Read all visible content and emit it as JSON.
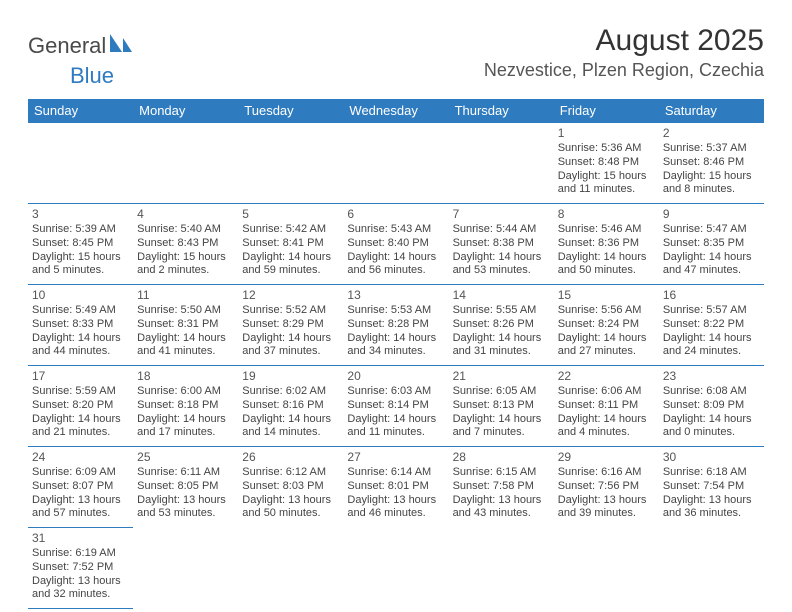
{
  "logo": {
    "text1": "General",
    "text2": "Blue"
  },
  "title": "August 2025",
  "location": "Nezvestice, Plzen Region, Czechia",
  "colors": {
    "header_bg": "#2f7bbf",
    "header_text": "#ffffff",
    "border": "#2f7bbf",
    "text": "#444444",
    "title_text": "#333333"
  },
  "weekdays": [
    "Sunday",
    "Monday",
    "Tuesday",
    "Wednesday",
    "Thursday",
    "Friday",
    "Saturday"
  ],
  "weeks": [
    [
      null,
      null,
      null,
      null,
      null,
      {
        "n": "1",
        "sr": "Sunrise: 5:36 AM",
        "ss": "Sunset: 8:48 PM",
        "d1": "Daylight: 15 hours",
        "d2": "and 11 minutes."
      },
      {
        "n": "2",
        "sr": "Sunrise: 5:37 AM",
        "ss": "Sunset: 8:46 PM",
        "d1": "Daylight: 15 hours",
        "d2": "and 8 minutes."
      }
    ],
    [
      {
        "n": "3",
        "sr": "Sunrise: 5:39 AM",
        "ss": "Sunset: 8:45 PM",
        "d1": "Daylight: 15 hours",
        "d2": "and 5 minutes."
      },
      {
        "n": "4",
        "sr": "Sunrise: 5:40 AM",
        "ss": "Sunset: 8:43 PM",
        "d1": "Daylight: 15 hours",
        "d2": "and 2 minutes."
      },
      {
        "n": "5",
        "sr": "Sunrise: 5:42 AM",
        "ss": "Sunset: 8:41 PM",
        "d1": "Daylight: 14 hours",
        "d2": "and 59 minutes."
      },
      {
        "n": "6",
        "sr": "Sunrise: 5:43 AM",
        "ss": "Sunset: 8:40 PM",
        "d1": "Daylight: 14 hours",
        "d2": "and 56 minutes."
      },
      {
        "n": "7",
        "sr": "Sunrise: 5:44 AM",
        "ss": "Sunset: 8:38 PM",
        "d1": "Daylight: 14 hours",
        "d2": "and 53 minutes."
      },
      {
        "n": "8",
        "sr": "Sunrise: 5:46 AM",
        "ss": "Sunset: 8:36 PM",
        "d1": "Daylight: 14 hours",
        "d2": "and 50 minutes."
      },
      {
        "n": "9",
        "sr": "Sunrise: 5:47 AM",
        "ss": "Sunset: 8:35 PM",
        "d1": "Daylight: 14 hours",
        "d2": "and 47 minutes."
      }
    ],
    [
      {
        "n": "10",
        "sr": "Sunrise: 5:49 AM",
        "ss": "Sunset: 8:33 PM",
        "d1": "Daylight: 14 hours",
        "d2": "and 44 minutes."
      },
      {
        "n": "11",
        "sr": "Sunrise: 5:50 AM",
        "ss": "Sunset: 8:31 PM",
        "d1": "Daylight: 14 hours",
        "d2": "and 41 minutes."
      },
      {
        "n": "12",
        "sr": "Sunrise: 5:52 AM",
        "ss": "Sunset: 8:29 PM",
        "d1": "Daylight: 14 hours",
        "d2": "and 37 minutes."
      },
      {
        "n": "13",
        "sr": "Sunrise: 5:53 AM",
        "ss": "Sunset: 8:28 PM",
        "d1": "Daylight: 14 hours",
        "d2": "and 34 minutes."
      },
      {
        "n": "14",
        "sr": "Sunrise: 5:55 AM",
        "ss": "Sunset: 8:26 PM",
        "d1": "Daylight: 14 hours",
        "d2": "and 31 minutes."
      },
      {
        "n": "15",
        "sr": "Sunrise: 5:56 AM",
        "ss": "Sunset: 8:24 PM",
        "d1": "Daylight: 14 hours",
        "d2": "and 27 minutes."
      },
      {
        "n": "16",
        "sr": "Sunrise: 5:57 AM",
        "ss": "Sunset: 8:22 PM",
        "d1": "Daylight: 14 hours",
        "d2": "and 24 minutes."
      }
    ],
    [
      {
        "n": "17",
        "sr": "Sunrise: 5:59 AM",
        "ss": "Sunset: 8:20 PM",
        "d1": "Daylight: 14 hours",
        "d2": "and 21 minutes."
      },
      {
        "n": "18",
        "sr": "Sunrise: 6:00 AM",
        "ss": "Sunset: 8:18 PM",
        "d1": "Daylight: 14 hours",
        "d2": "and 17 minutes."
      },
      {
        "n": "19",
        "sr": "Sunrise: 6:02 AM",
        "ss": "Sunset: 8:16 PM",
        "d1": "Daylight: 14 hours",
        "d2": "and 14 minutes."
      },
      {
        "n": "20",
        "sr": "Sunrise: 6:03 AM",
        "ss": "Sunset: 8:14 PM",
        "d1": "Daylight: 14 hours",
        "d2": "and 11 minutes."
      },
      {
        "n": "21",
        "sr": "Sunrise: 6:05 AM",
        "ss": "Sunset: 8:13 PM",
        "d1": "Daylight: 14 hours",
        "d2": "and 7 minutes."
      },
      {
        "n": "22",
        "sr": "Sunrise: 6:06 AM",
        "ss": "Sunset: 8:11 PM",
        "d1": "Daylight: 14 hours",
        "d2": "and 4 minutes."
      },
      {
        "n": "23",
        "sr": "Sunrise: 6:08 AM",
        "ss": "Sunset: 8:09 PM",
        "d1": "Daylight: 14 hours",
        "d2": "and 0 minutes."
      }
    ],
    [
      {
        "n": "24",
        "sr": "Sunrise: 6:09 AM",
        "ss": "Sunset: 8:07 PM",
        "d1": "Daylight: 13 hours",
        "d2": "and 57 minutes."
      },
      {
        "n": "25",
        "sr": "Sunrise: 6:11 AM",
        "ss": "Sunset: 8:05 PM",
        "d1": "Daylight: 13 hours",
        "d2": "and 53 minutes."
      },
      {
        "n": "26",
        "sr": "Sunrise: 6:12 AM",
        "ss": "Sunset: 8:03 PM",
        "d1": "Daylight: 13 hours",
        "d2": "and 50 minutes."
      },
      {
        "n": "27",
        "sr": "Sunrise: 6:14 AM",
        "ss": "Sunset: 8:01 PM",
        "d1": "Daylight: 13 hours",
        "d2": "and 46 minutes."
      },
      {
        "n": "28",
        "sr": "Sunrise: 6:15 AM",
        "ss": "Sunset: 7:58 PM",
        "d1": "Daylight: 13 hours",
        "d2": "and 43 minutes."
      },
      {
        "n": "29",
        "sr": "Sunrise: 6:16 AM",
        "ss": "Sunset: 7:56 PM",
        "d1": "Daylight: 13 hours",
        "d2": "and 39 minutes."
      },
      {
        "n": "30",
        "sr": "Sunrise: 6:18 AM",
        "ss": "Sunset: 7:54 PM",
        "d1": "Daylight: 13 hours",
        "d2": "and 36 minutes."
      }
    ],
    [
      {
        "n": "31",
        "sr": "Sunrise: 6:19 AM",
        "ss": "Sunset: 7:52 PM",
        "d1": "Daylight: 13 hours",
        "d2": "and 32 minutes."
      },
      null,
      null,
      null,
      null,
      null,
      null
    ]
  ]
}
